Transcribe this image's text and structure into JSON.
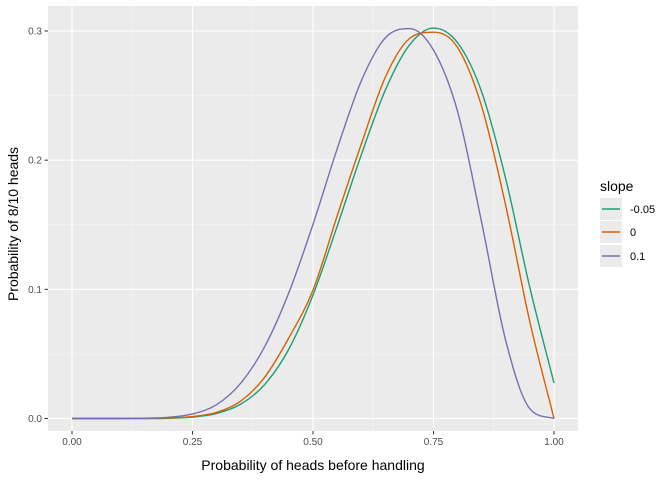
{
  "chart_data": {
    "type": "line",
    "title": "",
    "xlabel": "Probability of heads before handling",
    "ylabel": "Probability of 8/10 heads",
    "xlim": [
      0,
      1
    ],
    "ylim": [
      0,
      0.3
    ],
    "xticks": [
      0,
      0.25,
      0.5,
      0.75,
      1
    ],
    "xtick_labels": [
      "0.00",
      "0.25",
      "0.50",
      "0.75",
      "1.00"
    ],
    "yticks": [
      0,
      0.1,
      0.2,
      0.3
    ],
    "ytick_labels": [
      "0.0",
      "0.1",
      "0.2",
      "0.3"
    ],
    "grid": true,
    "legend": {
      "title": "slope",
      "position": "right"
    },
    "x": [
      0,
      0.05,
      0.1,
      0.15,
      0.2,
      0.25,
      0.3,
      0.35,
      0.4,
      0.45,
      0.5,
      0.55,
      0.6,
      0.65,
      0.7,
      0.75,
      0.8,
      0.85,
      0.9,
      0.95,
      1
    ],
    "series": [
      {
        "name": "-0.05",
        "color": "#1b9e77",
        "values": [
          0,
          0,
          0,
          0,
          0.0002,
          0.0011,
          0.0039,
          0.0111,
          0.0264,
          0.0538,
          0.0956,
          0.1487,
          0.2039,
          0.2542,
          0.2891,
          0.3023,
          0.2909,
          0.2528,
          0.1853,
          0.1012,
          0.0275
        ]
      },
      {
        "name": "0",
        "color": "#d95f02",
        "values": [
          0,
          0,
          0,
          0.0001,
          0.0004,
          0.0015,
          0.0047,
          0.0135,
          0.0321,
          0.0625,
          0.0994,
          0.1567,
          0.2122,
          0.2642,
          0.2941,
          0.2991,
          0.2872,
          0.2415,
          0.1645,
          0.0746,
          0
        ]
      },
      {
        "name": "0.1",
        "color": "#7570b3",
        "values": [
          0,
          0,
          0,
          0.0002,
          0.0009,
          0.0035,
          0.0107,
          0.0273,
          0.0558,
          0.0975,
          0.1503,
          0.2086,
          0.2612,
          0.2947,
          0.3019,
          0.2852,
          0.2376,
          0.1516,
          0.0601,
          0.0075,
          0
        ]
      }
    ]
  }
}
